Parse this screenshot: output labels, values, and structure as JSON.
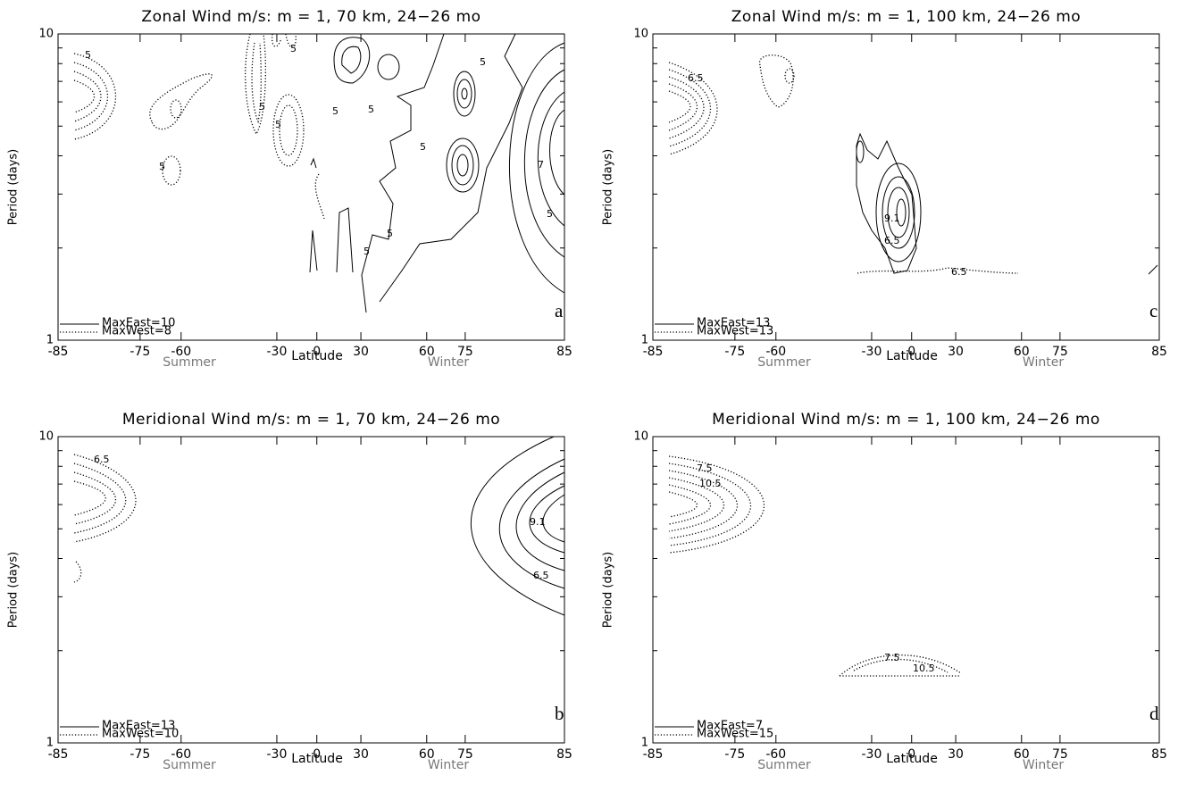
{
  "chart_data": [
    {
      "type": "contour",
      "title": "Zonal Wind m/s: m = 1, 70 km, 24−26 mo",
      "y_label": "Period (days)",
      "x_label": "Latitude",
      "season_labels": [
        "Summer",
        "Winter"
      ],
      "panel_label": "a",
      "xlim": [
        -85,
        85
      ],
      "xticks": [
        -85,
        -75,
        -60,
        -30,
        0,
        30,
        60,
        75,
        85
      ],
      "ylim": [
        1,
        10
      ],
      "yticks": [
        1,
        10
      ],
      "yminorticks": [
        2,
        3,
        4,
        5,
        6,
        7,
        8,
        9
      ],
      "log_y": true,
      "legend": [
        {
          "label": "MaxEast=10",
          "style": "solid"
        },
        {
          "label": "MaxWest=8",
          "style": "dotted"
        }
      ],
      "contour_labels": [
        5,
        5,
        5,
        5,
        5,
        5,
        5,
        5,
        5,
        5,
        5,
        5,
        7
      ]
    },
    {
      "type": "contour",
      "title": "Meridional Wind m/s: m = 1, 70 km, 24−26 mo",
      "y_label": "Period (days)",
      "x_label": "Latitude",
      "season_labels": [
        "Summer",
        "Winter"
      ],
      "panel_label": "b",
      "xlim": [
        -85,
        85
      ],
      "xticks": [
        -85,
        -75,
        -60,
        -30,
        0,
        30,
        60,
        75,
        85
      ],
      "ylim": [
        1,
        10
      ],
      "yticks": [
        1,
        10
      ],
      "yminorticks": [
        2,
        3,
        4,
        5,
        6,
        7,
        8,
        9
      ],
      "log_y": true,
      "legend": [
        {
          "label": "MaxEast=13",
          "style": "solid"
        },
        {
          "label": "MaxWest=10",
          "style": "dotted"
        }
      ],
      "contour_labels": [
        6.5,
        9.1,
        6.5
      ]
    },
    {
      "type": "contour",
      "title": "Zonal Wind m/s: m = 1, 100 km, 24−26 mo",
      "y_label": "Period (days)",
      "x_label": "Latitude",
      "season_labels": [
        "Summer",
        "Winter"
      ],
      "panel_label": "c",
      "xlim": [
        -85,
        85
      ],
      "xticks": [
        -85,
        -75,
        -60,
        -30,
        0,
        30,
        60,
        75,
        85
      ],
      "ylim": [
        1,
        10
      ],
      "yticks": [
        1,
        10
      ],
      "yminorticks": [
        2,
        3,
        4,
        5,
        6,
        7,
        8,
        9
      ],
      "log_y": true,
      "legend": [
        {
          "label": "MaxEast=13",
          "style": "solid"
        },
        {
          "label": "MaxWest=13",
          "style": "dotted"
        }
      ],
      "contour_labels": [
        6.5,
        9.1,
        6.5,
        6.5
      ]
    },
    {
      "type": "contour",
      "title": "Meridional Wind m/s: m = 1, 100 km, 24−26 mo",
      "y_label": "Period (days)",
      "x_label": "Latitude",
      "season_labels": [
        "Summer",
        "Winter"
      ],
      "panel_label": "d",
      "xlim": [
        -85,
        85
      ],
      "xticks": [
        -85,
        -75,
        -60,
        -30,
        0,
        30,
        60,
        75,
        85
      ],
      "ylim": [
        1,
        10
      ],
      "yticks": [
        1,
        10
      ],
      "yminorticks": [
        2,
        3,
        4,
        5,
        6,
        7,
        8,
        9
      ],
      "log_y": true,
      "legend": [
        {
          "label": "MaxEast=7",
          "style": "solid"
        },
        {
          "label": "MaxWest=15",
          "style": "dotted"
        }
      ],
      "contour_labels": [
        7.5,
        10.5,
        7.5,
        10.5
      ]
    }
  ]
}
